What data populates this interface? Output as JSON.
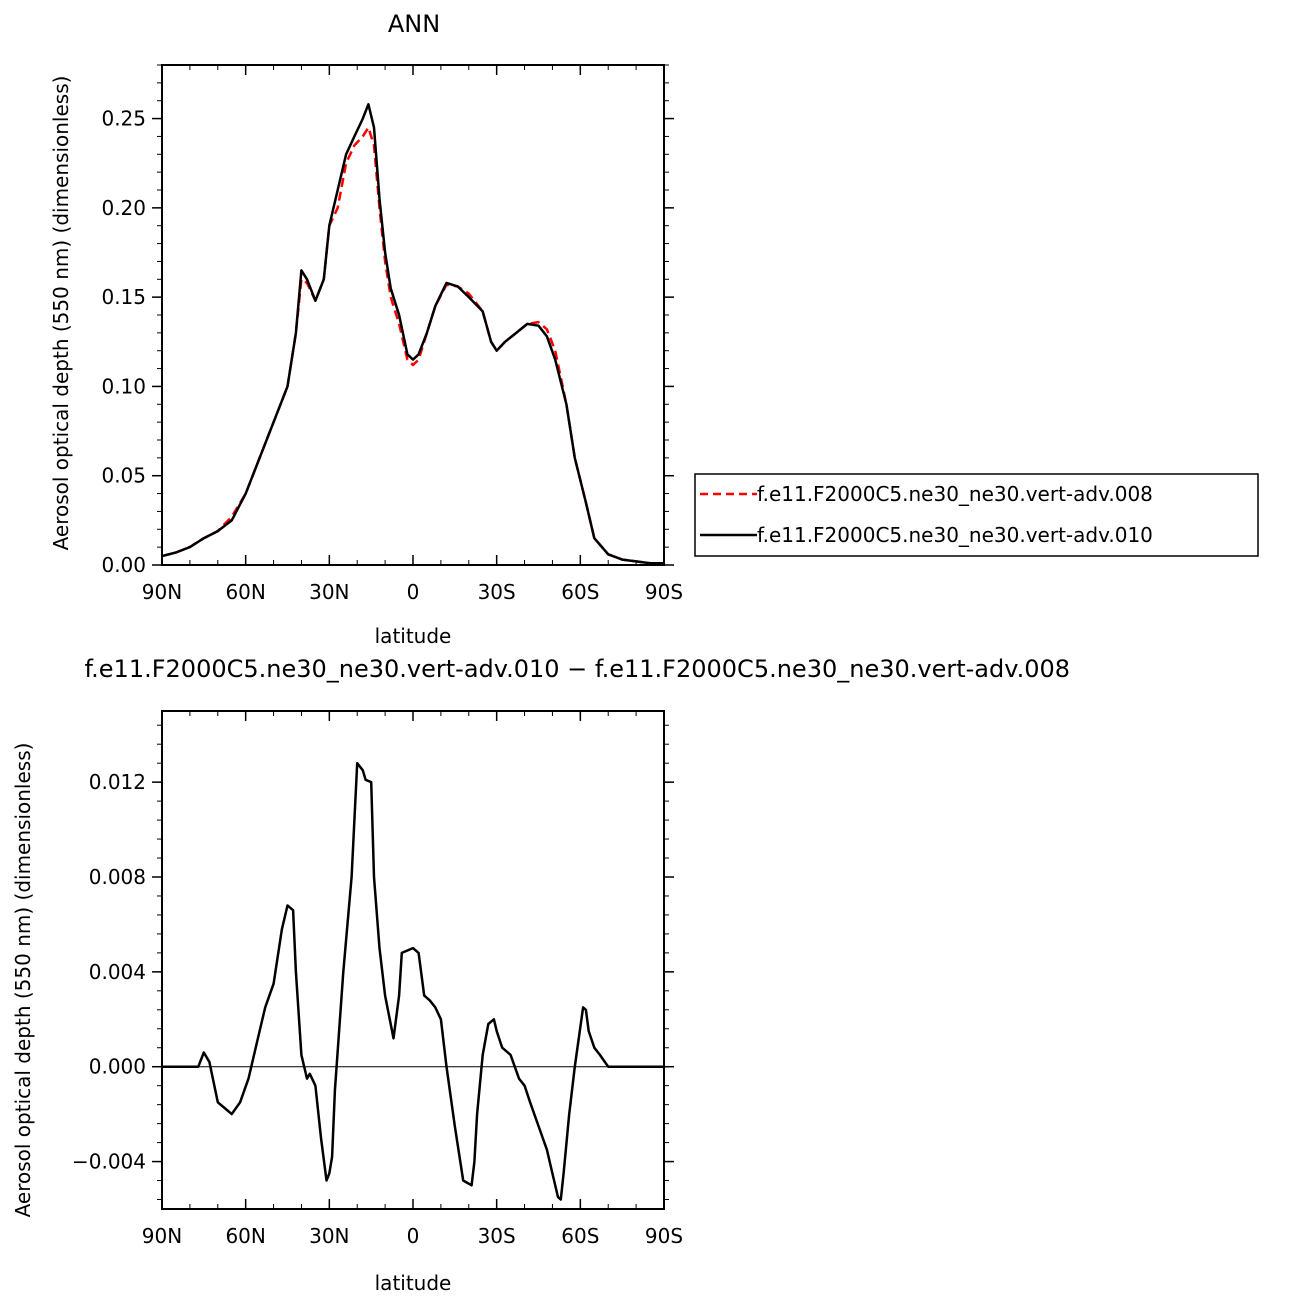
{
  "chart_data": [
    {
      "type": "line",
      "title": "ANN",
      "xlabel": "latitude",
      "ylabel": "Aerosol optical depth (550 nm) (dimensionless)",
      "xlim": [
        90,
        -90
      ],
      "ylim": [
        0,
        0.28
      ],
      "x_ticks": [
        {
          "value": 90,
          "label": "90N"
        },
        {
          "value": 60,
          "label": "60N"
        },
        {
          "value": 30,
          "label": "30N"
        },
        {
          "value": 0,
          "label": "0"
        },
        {
          "value": -30,
          "label": "30S"
        },
        {
          "value": -60,
          "label": "60S"
        },
        {
          "value": -90,
          "label": "90S"
        }
      ],
      "y_ticks": [
        {
          "value": 0.0,
          "label": "0.00"
        },
        {
          "value": 0.05,
          "label": "0.05"
        },
        {
          "value": 0.1,
          "label": "0.10"
        },
        {
          "value": 0.15,
          "label": "0.15"
        },
        {
          "value": 0.2,
          "label": "0.20"
        },
        {
          "value": 0.25,
          "label": "0.25"
        }
      ],
      "legend_position": "right",
      "series": [
        {
          "name": "f.e11.F2000C5.ne30_ne30.vert-adv.008",
          "color": "#ff0000",
          "dash": "dashed",
          "x": [
            90,
            85,
            80,
            75,
            70,
            65,
            60,
            55,
            50,
            45,
            42,
            40,
            38,
            35,
            32,
            30,
            27,
            24,
            21,
            18,
            16,
            14,
            12,
            10,
            8,
            5,
            2,
            0,
            -2,
            -5,
            -8,
            -12,
            -16,
            -20,
            -25,
            -28,
            -30,
            -33,
            -37,
            -41,
            -45,
            -48,
            -51,
            -55,
            -58,
            -62,
            -65,
            -70,
            -75,
            -80,
            -85,
            -90
          ],
          "y": [
            0.005,
            0.007,
            0.01,
            0.015,
            0.019,
            0.027,
            0.04,
            0.06,
            0.08,
            0.1,
            0.13,
            0.16,
            0.158,
            0.148,
            0.16,
            0.19,
            0.2,
            0.225,
            0.235,
            0.24,
            0.245,
            0.235,
            0.2,
            0.17,
            0.15,
            0.135,
            0.115,
            0.112,
            0.115,
            0.13,
            0.145,
            0.157,
            0.156,
            0.152,
            0.142,
            0.125,
            0.12,
            0.125,
            0.13,
            0.135,
            0.136,
            0.132,
            0.12,
            0.09,
            0.06,
            0.035,
            0.015,
            0.006,
            0.003,
            0.002,
            0.001,
            0.001
          ]
        },
        {
          "name": "f.e11.F2000C5.ne30_ne30.vert-adv.010",
          "color": "#000000",
          "dash": "solid",
          "x": [
            90,
            85,
            80,
            75,
            70,
            65,
            60,
            55,
            50,
            45,
            42,
            40,
            38,
            35,
            32,
            30,
            27,
            24,
            21,
            18,
            16,
            14,
            12,
            10,
            8,
            5,
            2,
            0,
            -2,
            -5,
            -8,
            -12,
            -16,
            -20,
            -25,
            -28,
            -30,
            -33,
            -37,
            -41,
            -45,
            -48,
            -51,
            -55,
            -58,
            -62,
            -65,
            -70,
            -75,
            -80,
            -85,
            -90
          ],
          "y": [
            0.005,
            0.007,
            0.01,
            0.015,
            0.019,
            0.025,
            0.04,
            0.06,
            0.08,
            0.1,
            0.13,
            0.165,
            0.16,
            0.148,
            0.16,
            0.19,
            0.21,
            0.23,
            0.24,
            0.25,
            0.258,
            0.245,
            0.205,
            0.175,
            0.155,
            0.14,
            0.118,
            0.115,
            0.118,
            0.13,
            0.145,
            0.158,
            0.156,
            0.15,
            0.142,
            0.125,
            0.12,
            0.125,
            0.13,
            0.135,
            0.134,
            0.128,
            0.115,
            0.09,
            0.06,
            0.035,
            0.015,
            0.006,
            0.003,
            0.002,
            0.001,
            0.001
          ]
        }
      ]
    },
    {
      "type": "line",
      "title": "f.e11.F2000C5.ne30_ne30.vert-adv.010 − f.e11.F2000C5.ne30_ne30.vert-adv.008",
      "xlabel": "latitude",
      "ylabel": "Aerosol optical depth (550 nm) (dimensionless)",
      "xlim": [
        90,
        -90
      ],
      "ylim": [
        -0.006,
        0.015
      ],
      "x_ticks": [
        {
          "value": 90,
          "label": "90N"
        },
        {
          "value": 60,
          "label": "60N"
        },
        {
          "value": 30,
          "label": "30N"
        },
        {
          "value": 0,
          "label": "0"
        },
        {
          "value": -30,
          "label": "30S"
        },
        {
          "value": -60,
          "label": "60S"
        },
        {
          "value": -90,
          "label": "90S"
        }
      ],
      "y_ticks": [
        {
          "value": -0.004,
          "label": "−0.004"
        },
        {
          "value": 0.0,
          "label": "0.000"
        },
        {
          "value": 0.004,
          "label": "0.004"
        },
        {
          "value": 0.008,
          "label": "0.008"
        },
        {
          "value": 0.012,
          "label": "0.012"
        }
      ],
      "series": [
        {
          "name": "",
          "color": "#000000",
          "dash": "solid",
          "x": [
            90,
            85,
            80,
            77,
            75,
            73,
            70,
            68,
            65,
            62,
            59,
            56,
            53,
            50,
            47,
            45,
            43,
            42,
            40,
            38,
            37,
            35,
            33,
            31,
            30,
            29,
            28,
            25,
            22,
            20,
            18,
            17,
            15,
            14,
            12,
            10,
            7,
            5,
            4,
            2,
            0,
            -2,
            -4,
            -6,
            -8,
            -10,
            -12,
            -15,
            -18,
            -21,
            -22,
            -23,
            -25,
            -27,
            -29,
            -30,
            -32,
            -35,
            -38,
            -40,
            -42,
            -45,
            -48,
            -50,
            -52,
            -53,
            -54,
            -56,
            -58,
            -61,
            -62,
            -63,
            -65,
            -67,
            -70,
            -75,
            -80,
            -85,
            -90
          ],
          "y": [
            0.0,
            0.0,
            0.0,
            0.0,
            0.0006,
            0.0002,
            -0.0015,
            -0.0017,
            -0.002,
            -0.0015,
            -0.0005,
            0.001,
            0.0025,
            0.0035,
            0.0058,
            0.0068,
            0.0066,
            0.004,
            0.0005,
            -0.0005,
            -0.0003,
            -0.0008,
            -0.003,
            -0.0048,
            -0.0045,
            -0.0038,
            -0.001,
            0.004,
            0.008,
            0.0128,
            0.0125,
            0.0121,
            0.012,
            0.008,
            0.005,
            0.003,
            0.0012,
            0.003,
            0.0048,
            0.0049,
            0.005,
            0.0048,
            0.003,
            0.0028,
            0.0025,
            0.002,
            0.0,
            -0.0025,
            -0.0048,
            -0.005,
            -0.004,
            -0.002,
            0.0005,
            0.0018,
            0.002,
            0.0015,
            0.0008,
            0.0005,
            -0.0005,
            -0.0008,
            -0.0015,
            -0.0025,
            -0.0035,
            -0.0045,
            -0.0055,
            -0.0056,
            -0.0045,
            -0.002,
            0.0,
            0.0025,
            0.0024,
            0.0015,
            0.0008,
            0.0005,
            0.0,
            0.0,
            0.0,
            0.0,
            0.0
          ]
        }
      ]
    }
  ]
}
